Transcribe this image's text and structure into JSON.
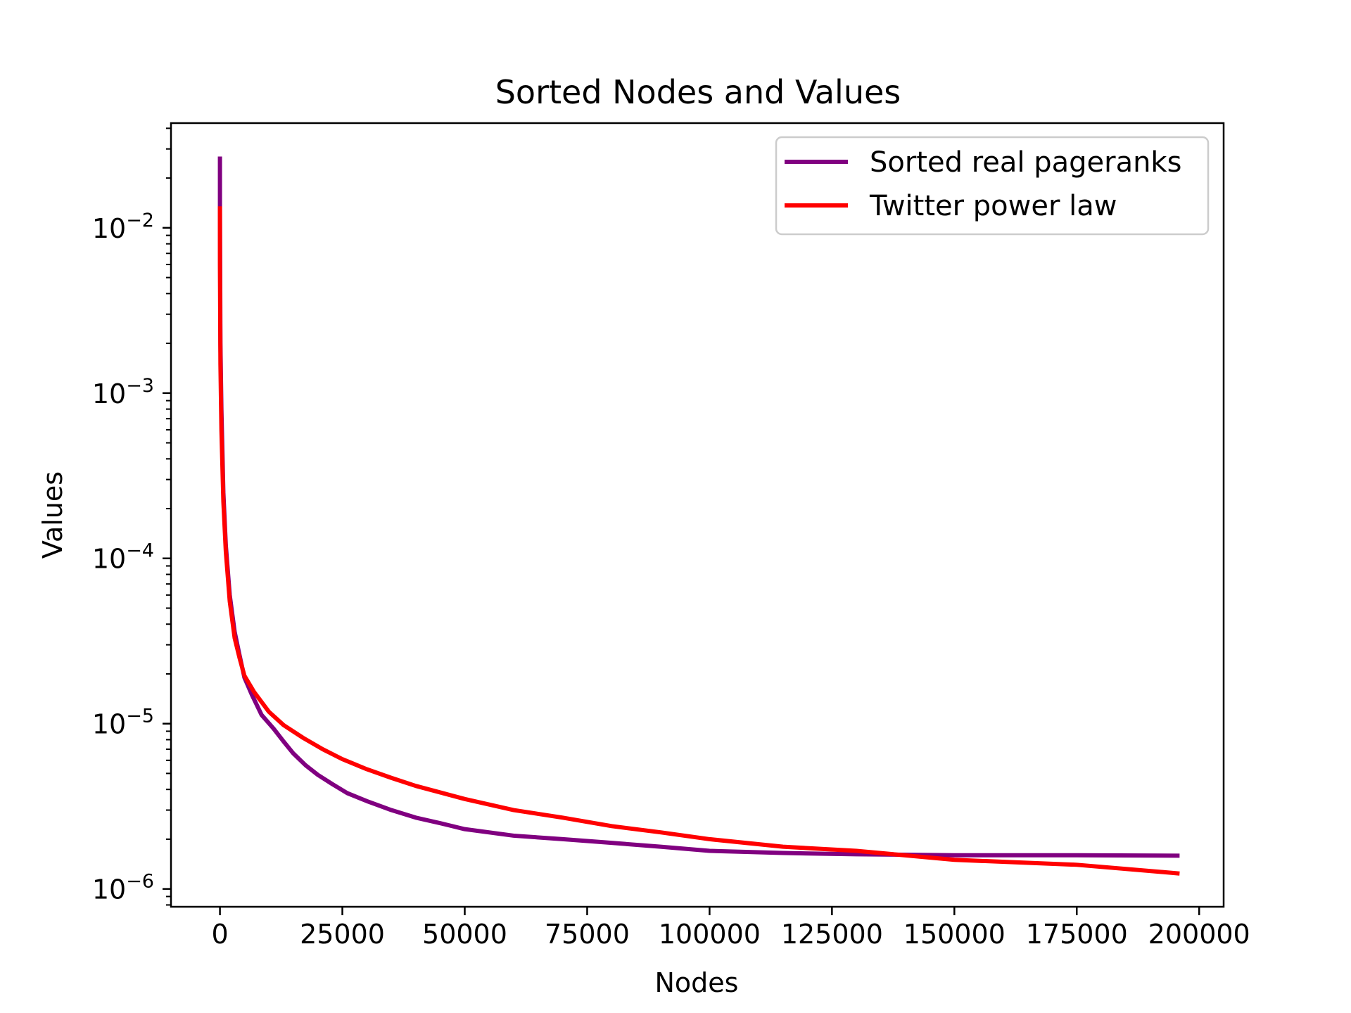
{
  "chart_data": {
    "type": "line",
    "title": "Sorted Nodes and Values",
    "xlabel": "Nodes",
    "ylabel": "Values",
    "x_scale": "linear",
    "y_scale": "log",
    "xlim": [
      -10000,
      205000
    ],
    "ylim": [
      7.8e-07,
      0.043
    ],
    "x_ticks": [
      0,
      25000,
      50000,
      75000,
      100000,
      125000,
      150000,
      175000,
      200000
    ],
    "x_tick_labels": [
      "0",
      "25000",
      "50000",
      "75000",
      "100000",
      "125000",
      "150000",
      "175000",
      "200000"
    ],
    "y_ticks": [
      {
        "value": 0.01,
        "base": "10",
        "exp": "−2"
      },
      {
        "value": 0.001,
        "base": "10",
        "exp": "−3"
      },
      {
        "value": 0.0001,
        "base": "10",
        "exp": "−4"
      },
      {
        "value": 1e-05,
        "base": "10",
        "exp": "−5"
      },
      {
        "value": 1e-06,
        "base": "10",
        "exp": "−6"
      }
    ],
    "grid": false,
    "legend_position": "top-right",
    "series": [
      {
        "name": "Sorted real pageranks",
        "color": "#800080",
        "points": [
          [
            0,
            0.027
          ],
          [
            1,
            0.013
          ],
          [
            100,
            0.002
          ],
          [
            300,
            0.0008
          ],
          [
            700,
            0.00025
          ],
          [
            1200,
            0.00012
          ],
          [
            2000,
            6e-05
          ],
          [
            3000,
            3.6e-05
          ],
          [
            4000,
            2.6e-05
          ],
          [
            5000,
            1.9e-05
          ],
          [
            6500,
            1.5e-05
          ],
          [
            8500,
            1.13e-05
          ],
          [
            11000,
            9.3e-06
          ],
          [
            13000,
            7.8e-06
          ],
          [
            15000,
            6.6e-06
          ],
          [
            17500,
            5.6e-06
          ],
          [
            20000,
            4.9e-06
          ],
          [
            23000,
            4.3e-06
          ],
          [
            26000,
            3.8e-06
          ],
          [
            30000,
            3.4e-06
          ],
          [
            35000,
            3e-06
          ],
          [
            40000,
            2.7e-06
          ],
          [
            45000,
            2.5e-06
          ],
          [
            50000,
            2.3e-06
          ],
          [
            60000,
            2.1e-06
          ],
          [
            70000,
            2e-06
          ],
          [
            80000,
            1.9e-06
          ],
          [
            90000,
            1.8e-06
          ],
          [
            100000,
            1.7e-06
          ],
          [
            115000,
            1.65e-06
          ],
          [
            130000,
            1.62e-06
          ],
          [
            150000,
            1.6e-06
          ],
          [
            175000,
            1.6e-06
          ],
          [
            196000,
            1.59e-06
          ]
        ]
      },
      {
        "name": "Twitter power law",
        "color": "#ff0000",
        "points": [
          [
            0,
            0.0135
          ],
          [
            1,
            0.006
          ],
          [
            100,
            0.0015
          ],
          [
            300,
            0.0006
          ],
          [
            700,
            0.00022
          ],
          [
            1200,
            0.00011
          ],
          [
            2000,
            5.5e-05
          ],
          [
            3000,
            3.3e-05
          ],
          [
            4000,
            2.5e-05
          ],
          [
            5000,
            1.95e-05
          ],
          [
            7000,
            1.55e-05
          ],
          [
            10000,
            1.18e-05
          ],
          [
            13000,
            9.8e-06
          ],
          [
            17000,
            8.2e-06
          ],
          [
            21000,
            7e-06
          ],
          [
            25000,
            6.1e-06
          ],
          [
            30000,
            5.3e-06
          ],
          [
            35000,
            4.7e-06
          ],
          [
            40000,
            4.2e-06
          ],
          [
            50000,
            3.5e-06
          ],
          [
            60000,
            3e-06
          ],
          [
            70000,
            2.7e-06
          ],
          [
            80000,
            2.4e-06
          ],
          [
            90000,
            2.2e-06
          ],
          [
            100000,
            2e-06
          ],
          [
            115000,
            1.8e-06
          ],
          [
            130000,
            1.7e-06
          ],
          [
            150000,
            1.5e-06
          ],
          [
            175000,
            1.4e-06
          ],
          [
            196000,
            1.24e-06
          ]
        ]
      }
    ]
  }
}
